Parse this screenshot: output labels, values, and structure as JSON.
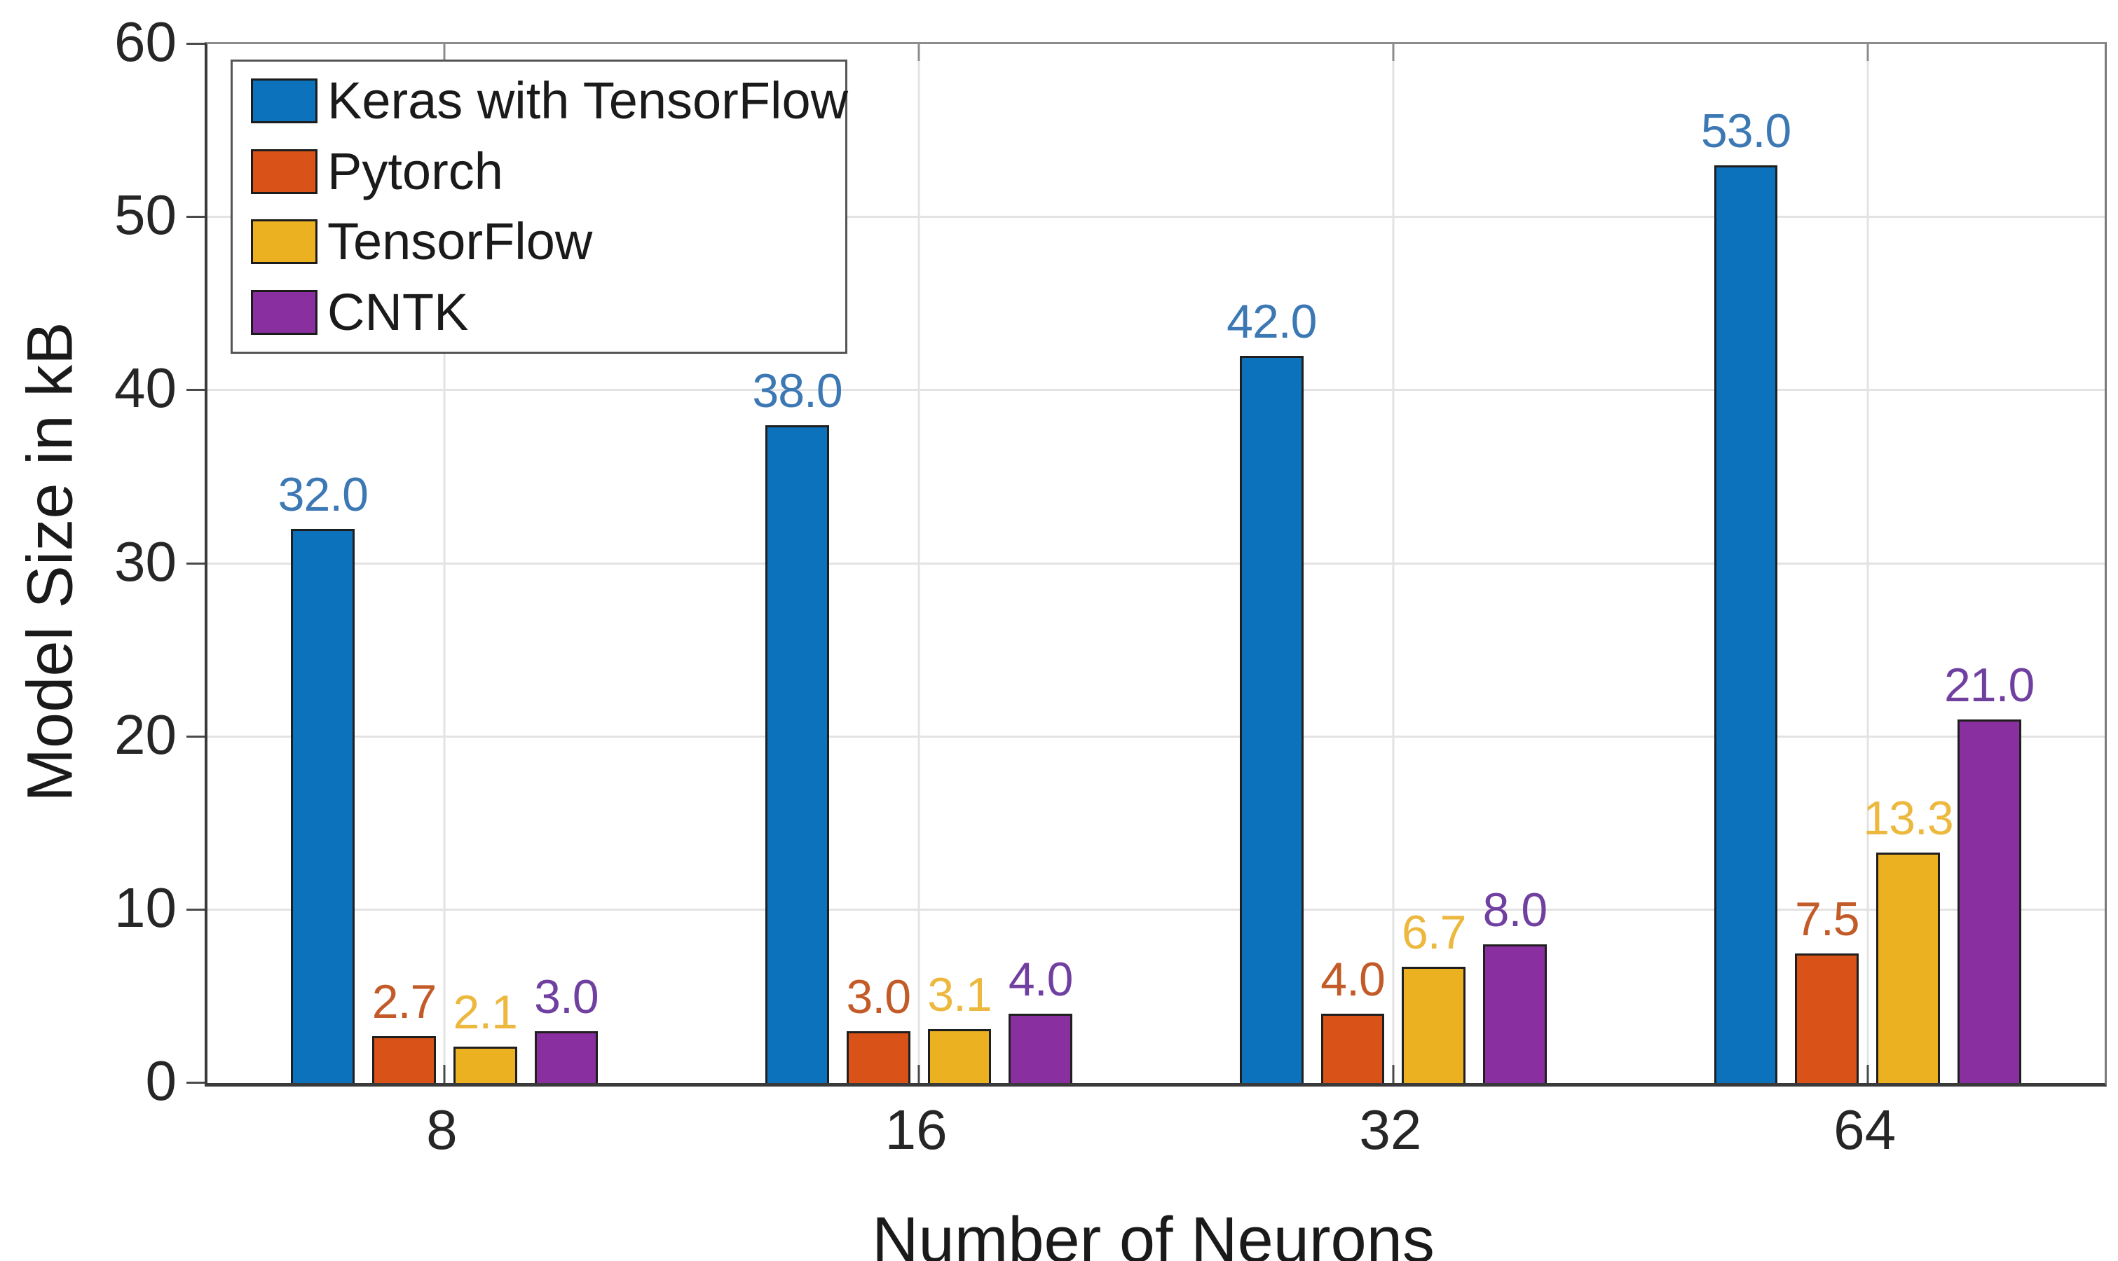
{
  "chart_data": {
    "type": "bar",
    "title": "",
    "xlabel": "Number of Neurons",
    "ylabel": "Model Size in kB",
    "categories": [
      "8",
      "16",
      "32",
      "64"
    ],
    "series": [
      {
        "name": "Keras with TensorFlow",
        "color": "#0d72bc",
        "label_color": "#3c78b3",
        "values": [
          32.0,
          38.0,
          42.0,
          53.0
        ],
        "labels": [
          "32.0",
          "38.0",
          "42.0",
          "53.0"
        ]
      },
      {
        "name": "Pytorch",
        "color": "#d95319",
        "label_color": "#c25b28",
        "values": [
          2.7,
          3.0,
          4.0,
          7.5
        ],
        "labels": [
          "2.7",
          "3.0",
          "4.0",
          "7.5"
        ]
      },
      {
        "name": "TensorFlow",
        "color": "#ecb120",
        "label_color": "#ecb83e",
        "values": [
          2.1,
          3.1,
          6.7,
          13.3
        ],
        "labels": [
          "2.1",
          "3.1",
          "6.7",
          "13.3"
        ]
      },
      {
        "name": "CNTK",
        "color": "#8a2fa0",
        "label_color": "#7040a0",
        "values": [
          3.0,
          4.0,
          8.0,
          21.0
        ],
        "labels": [
          "3.0",
          "4.0",
          "8.0",
          "21.0"
        ]
      }
    ],
    "ylim": [
      0,
      60
    ],
    "yticks": [
      0,
      10,
      20,
      30,
      40,
      50,
      60
    ],
    "ytick_labels": [
      "0",
      "10",
      "20",
      "30",
      "40",
      "50",
      "60"
    ],
    "grid": true,
    "legend_position": "top-left",
    "colors": {
      "grid": "#e3e3e3",
      "axis_dark": "#3a3a3a",
      "axis_box": "#8c8c8c",
      "tick_text": "#262626",
      "background": "#ffffff"
    }
  }
}
